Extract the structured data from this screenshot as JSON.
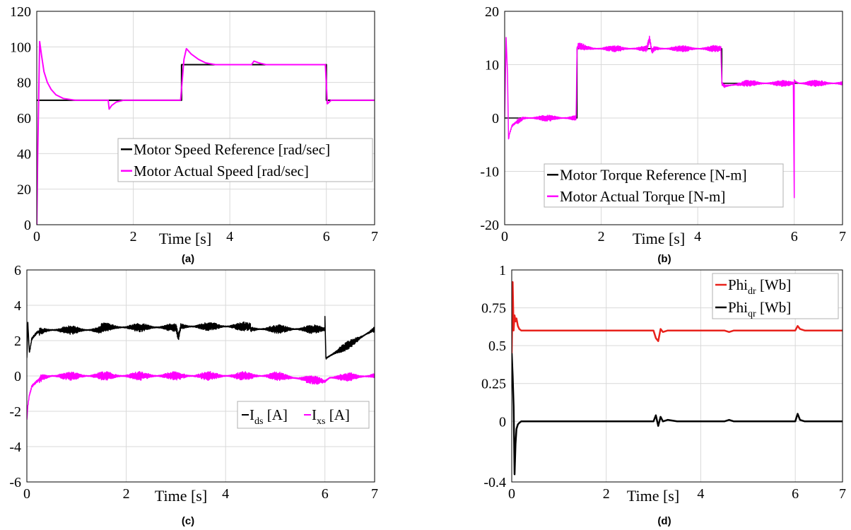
{
  "chart_data": [
    {
      "panel": "a",
      "type": "line",
      "caption": "(a)",
      "xlabel": "Time [s]",
      "xlim": [
        0,
        7
      ],
      "ylim": [
        0,
        120
      ],
      "xticks": [
        0,
        2,
        4,
        6,
        7
      ],
      "yticks": [
        0,
        20,
        40,
        60,
        80,
        100,
        120
      ],
      "grid": true,
      "legend_position": "center-right",
      "legend_entries": [
        {
          "text": "Motor Speed Reference [rad/sec]",
          "color": "#000000"
        },
        {
          "text": "Motor Actual Speed [rad/sec]",
          "color": "#ff00ff"
        }
      ],
      "series": [
        {
          "color": "#000000",
          "width": 2,
          "x": [
            0,
            1.5,
            3.0,
            3.0,
            4.5,
            6.0,
            6.0,
            7.0
          ],
          "y": [
            70,
            70,
            70,
            90,
            90,
            90,
            70,
            70
          ]
        },
        {
          "color": "#ff00ff",
          "width": 2,
          "x": [
            0,
            0.02,
            0.06,
            0.1,
            0.15,
            0.22,
            0.3,
            0.4,
            0.55,
            0.8,
            1.2,
            1.48,
            1.5,
            1.55,
            1.65,
            1.8,
            2.0,
            2.5,
            2.98,
            3.05,
            3.1,
            3.2,
            3.35,
            3.5,
            3.7,
            4.0,
            4.45,
            4.5,
            4.6,
            4.75,
            5.0,
            5.5,
            5.98,
            6.02,
            6.1,
            6.2,
            6.4,
            7.0
          ],
          "y": [
            0,
            40,
            103,
            95,
            86,
            80,
            76,
            73,
            71,
            70,
            70,
            70,
            65,
            67,
            69,
            70,
            70,
            70,
            70,
            93,
            99,
            96,
            93,
            91,
            90,
            90,
            90,
            92,
            91,
            90,
            90,
            90,
            90,
            68,
            70,
            70,
            70,
            70
          ]
        }
      ]
    },
    {
      "panel": "b",
      "type": "line",
      "caption": "(b)",
      "xlabel": "Time [s]",
      "xlim": [
        0,
        7
      ],
      "ylim": [
        -20,
        20
      ],
      "xticks": [
        0,
        2,
        4,
        6,
        7
      ],
      "yticks": [
        -20,
        -10,
        0,
        10,
        20
      ],
      "grid": true,
      "legend_position": "lower-center",
      "legend_entries": [
        {
          "text": "Motor Torque Reference [N-m]",
          "color": "#000000"
        },
        {
          "text": "Motor Actual Torque [N-m]",
          "color": "#ff00ff"
        }
      ],
      "series": [
        {
          "color": "#000000",
          "width": 1.5,
          "x": [
            0,
            1.5,
            1.5,
            4.5,
            4.5,
            7.0
          ],
          "y": [
            0,
            0,
            13,
            13,
            6.5,
            6.5
          ]
        },
        {
          "color": "#ff00ff",
          "width": 1.5,
          "x": [
            0,
            0.03,
            0.06,
            0.08,
            0.1,
            0.15,
            0.25,
            0.4,
            0.7,
            1.0,
            1.48,
            1.5,
            1.53,
            1.8,
            2.5,
            2.95,
            3.0,
            3.05,
            3.1,
            3.5,
            4.0,
            4.48,
            4.5,
            4.55,
            5.0,
            5.5,
            5.98,
            6.0,
            6.0,
            6.02,
            6.1,
            6.5,
            7.0
          ],
          "y": [
            0,
            15,
            8,
            -4,
            -3,
            -1.5,
            -0.7,
            0,
            0,
            0,
            0,
            13,
            13.5,
            13,
            13,
            13,
            15,
            12.5,
            13,
            13,
            13,
            13,
            6.5,
            6,
            6.5,
            6.5,
            6.5,
            -15,
            7,
            6.8,
            6.5,
            6.5,
            6.5
          ],
          "noise": 1.2
        }
      ]
    },
    {
      "panel": "c",
      "type": "line",
      "caption": "(c)",
      "xlabel": "Time [s]",
      "xlim": [
        0,
        7
      ],
      "ylim": [
        -6,
        6
      ],
      "xticks": [
        0,
        2,
        4,
        6,
        7
      ],
      "yticks": [
        -6,
        -4,
        -2,
        0,
        2,
        4,
        6
      ],
      "grid": true,
      "legend_position": "center-right",
      "legend_entries": [
        {
          "text": "I",
          "sub": "ds",
          "unit": " [A]",
          "color": "#000000"
        },
        {
          "text": "I",
          "sub": "xs",
          "unit": " [A]",
          "color": "#ff00ff"
        }
      ],
      "series": [
        {
          "color": "#000000",
          "width": 1.5,
          "x": [
            0,
            0.02,
            0.05,
            0.1,
            0.2,
            0.3,
            0.5,
            1.5,
            1.5,
            3.0,
            3.05,
            3.1,
            3.15,
            4.5,
            4.5,
            6.0,
            6.0,
            6.02,
            7.0
          ],
          "y": [
            1.0,
            3.0,
            1.3,
            2.1,
            2.45,
            2.55,
            2.6,
            2.6,
            2.75,
            2.75,
            2.2,
            2.8,
            2.8,
            2.8,
            2.65,
            2.65,
            3.3,
            1.0,
            2.65
          ],
          "noise": 0.5
        },
        {
          "color": "#ff00ff",
          "width": 1.5,
          "x": [
            0,
            0.02,
            0.05,
            0.1,
            0.2,
            0.3,
            0.5,
            1.0,
            2.0,
            3.0,
            4.0,
            5.0,
            6.0,
            6.1,
            7.0
          ],
          "y": [
            -2.5,
            -1.7,
            -1.1,
            -0.6,
            -0.3,
            -0.1,
            0,
            0,
            0,
            0,
            0,
            0,
            -0.3,
            -0.1,
            0
          ],
          "noise": 0.5
        }
      ]
    },
    {
      "panel": "d",
      "type": "line",
      "caption": "(d)",
      "xlabel": "Time [s]",
      "xlim": [
        0,
        7
      ],
      "ylim": [
        -0.4,
        1.0
      ],
      "xticks": [
        0,
        2,
        4,
        6,
        7
      ],
      "yticks": [
        -0.4,
        0,
        0.25,
        0.5,
        0.75,
        1
      ],
      "yticklabels": [
        "-0.4",
        "0",
        "0.25",
        "0.5",
        "0.75",
        "1"
      ],
      "grid": true,
      "legend_position": "top-right",
      "legend_entries": [
        {
          "text": "Phi",
          "sub": "dr",
          "unit": " [Wb]",
          "color": "#e8211b"
        },
        {
          "text": "Phi",
          "sub": "qr",
          "unit": " [Wb]",
          "color": "#000000"
        }
      ],
      "series": [
        {
          "color": "#e8211b",
          "width": 2.5,
          "x": [
            0,
            0.02,
            0.04,
            0.06,
            0.08,
            0.1,
            0.13,
            0.16,
            0.2,
            0.3,
            0.5,
            3.0,
            3.05,
            3.1,
            3.15,
            3.2,
            3.3,
            3.5,
            4.5,
            4.6,
            4.7,
            6.0,
            6.05,
            6.1,
            6.2,
            7.0
          ],
          "y": [
            0.45,
            0.92,
            0.6,
            0.7,
            0.66,
            0.68,
            0.63,
            0.61,
            0.6,
            0.6,
            0.6,
            0.6,
            0.55,
            0.53,
            0.61,
            0.59,
            0.6,
            0.6,
            0.6,
            0.59,
            0.6,
            0.6,
            0.63,
            0.61,
            0.6,
            0.6
          ]
        },
        {
          "color": "#000000",
          "width": 2.5,
          "x": [
            0,
            0.02,
            0.04,
            0.06,
            0.08,
            0.1,
            0.13,
            0.16,
            0.2,
            0.3,
            0.5,
            3.0,
            3.05,
            3.1,
            3.15,
            3.2,
            3.3,
            3.5,
            4.5,
            4.6,
            4.7,
            6.0,
            6.05,
            6.1,
            6.2,
            7.0
          ],
          "y": [
            0.45,
            0.3,
            0.1,
            -0.35,
            -0.15,
            -0.05,
            -0.02,
            -0.01,
            0,
            0,
            0,
            0,
            0.04,
            -0.03,
            0.03,
            0,
            0.01,
            0,
            0,
            0.01,
            0,
            0,
            0.05,
            0.01,
            0,
            0
          ]
        }
      ]
    }
  ]
}
